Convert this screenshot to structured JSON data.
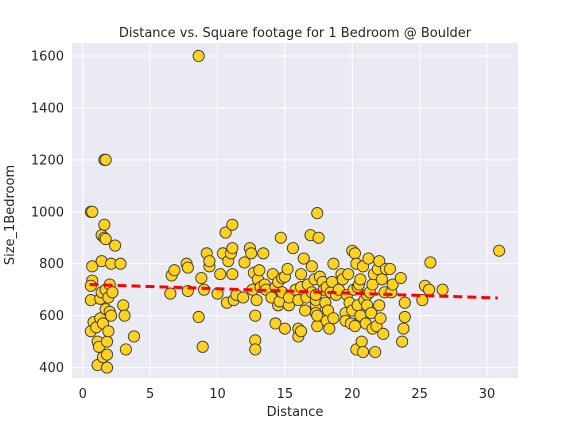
{
  "chart_data": {
    "type": "scatter",
    "title": "Distance vs. Square footage for 1 Bedroom @ Boulder",
    "xlabel": "Distance",
    "ylabel": "Size_1Bedroom",
    "xlim": [
      -0.8,
      32.3
    ],
    "ylim": [
      360,
      1650
    ],
    "xticks": [
      0,
      5,
      10,
      15,
      20,
      25,
      30
    ],
    "yticks": [
      400,
      600,
      800,
      1000,
      1200,
      1400,
      1600
    ],
    "grid": true,
    "legend": "none",
    "colors": {
      "background": "#eaeaf2",
      "grid": "#ffffff",
      "point_fill": "#ffd21e",
      "point_edge": "#3a3a3a",
      "trend": "#ff0000"
    },
    "trend_line": {
      "style": "dashed",
      "x": [
        0.5,
        30.8
      ],
      "y": [
        720,
        668
      ]
    },
    "points": [
      [
        0.6,
        1000
      ],
      [
        0.7,
        1000
      ],
      [
        0.7,
        790
      ],
      [
        0.7,
        735
      ],
      [
        0.6,
        715
      ],
      [
        0.6,
        660
      ],
      [
        0.8,
        575
      ],
      [
        0.6,
        540
      ],
      [
        1.0,
        555
      ],
      [
        1.1,
        500
      ],
      [
        1.1,
        410
      ],
      [
        1.2,
        480
      ],
      [
        1.3,
        665
      ],
      [
        1.3,
        590
      ],
      [
        1.4,
        810
      ],
      [
        1.4,
        690
      ],
      [
        1.5,
        570
      ],
      [
        1.4,
        910
      ],
      [
        1.5,
        440
      ],
      [
        1.6,
        950
      ],
      [
        1.6,
        900
      ],
      [
        1.6,
        1200
      ],
      [
        1.7,
        1200
      ],
      [
        1.7,
        895
      ],
      [
        1.7,
        700
      ],
      [
        1.7,
        625
      ],
      [
        1.8,
        450
      ],
      [
        1.8,
        400
      ],
      [
        1.8,
        500
      ],
      [
        1.9,
        670
      ],
      [
        1.9,
        540
      ],
      [
        2.0,
        615
      ],
      [
        2.0,
        720
      ],
      [
        2.1,
        600
      ],
      [
        2.1,
        800
      ],
      [
        2.2,
        690
      ],
      [
        2.4,
        870
      ],
      [
        2.8,
        800
      ],
      [
        3.0,
        640
      ],
      [
        3.1,
        600
      ],
      [
        3.2,
        470
      ],
      [
        3.8,
        520
      ],
      [
        6.5,
        685
      ],
      [
        6.6,
        755
      ],
      [
        6.8,
        775
      ],
      [
        7.7,
        800
      ],
      [
        7.8,
        785
      ],
      [
        7.8,
        695
      ],
      [
        8.6,
        1600
      ],
      [
        8.6,
        595
      ],
      [
        8.8,
        745
      ],
      [
        8.9,
        480
      ],
      [
        9.0,
        700
      ],
      [
        9.2,
        840
      ],
      [
        9.4,
        790
      ],
      [
        9.4,
        810
      ],
      [
        10.0,
        685
      ],
      [
        10.2,
        760
      ],
      [
        10.4,
        840
      ],
      [
        10.6,
        920
      ],
      [
        10.7,
        650
      ],
      [
        10.8,
        810
      ],
      [
        11.0,
        840
      ],
      [
        11.1,
        860
      ],
      [
        11.1,
        950
      ],
      [
        11.1,
        760
      ],
      [
        11.2,
        660
      ],
      [
        11.4,
        680
      ],
      [
        11.9,
        670
      ],
      [
        12.0,
        805
      ],
      [
        12.4,
        860
      ],
      [
        12.5,
        840
      ],
      [
        12.6,
        700
      ],
      [
        12.7,
        765
      ],
      [
        12.8,
        505
      ],
      [
        12.8,
        470
      ],
      [
        12.8,
        600
      ],
      [
        12.9,
        660
      ],
      [
        13.0,
        740
      ],
      [
        13.1,
        775
      ],
      [
        13.2,
        710
      ],
      [
        13.4,
        840
      ],
      [
        13.5,
        720
      ],
      [
        13.6,
        700
      ],
      [
        14.0,
        670
      ],
      [
        14.1,
        760
      ],
      [
        14.3,
        570
      ],
      [
        14.3,
        710
      ],
      [
        14.5,
        730
      ],
      [
        14.5,
        640
      ],
      [
        14.6,
        655
      ],
      [
        14.7,
        900
      ],
      [
        14.8,
        690
      ],
      [
        14.8,
        745
      ],
      [
        15.0,
        750
      ],
      [
        15.0,
        550
      ],
      [
        15.2,
        780
      ],
      [
        15.3,
        640
      ],
      [
        15.3,
        670
      ],
      [
        15.6,
        860
      ],
      [
        15.8,
        700
      ],
      [
        16.0,
        520
      ],
      [
        16.0,
        660
      ],
      [
        16.0,
        550
      ],
      [
        16.2,
        540
      ],
      [
        16.2,
        710
      ],
      [
        16.2,
        760
      ],
      [
        16.4,
        820
      ],
      [
        16.5,
        620
      ],
      [
        16.6,
        670
      ],
      [
        16.7,
        720
      ],
      [
        16.9,
        910
      ],
      [
        17.0,
        790
      ],
      [
        17.0,
        690
      ],
      [
        17.2,
        740
      ],
      [
        17.3,
        640
      ],
      [
        17.3,
        660
      ],
      [
        17.3,
        610
      ],
      [
        17.3,
        680
      ],
      [
        17.4,
        560
      ],
      [
        17.4,
        995
      ],
      [
        17.4,
        600
      ],
      [
        17.5,
        900
      ],
      [
        17.6,
        750
      ],
      [
        17.8,
        730
      ],
      [
        17.9,
        700
      ],
      [
        18.0,
        650
      ],
      [
        18.1,
        580
      ],
      [
        18.1,
        710
      ],
      [
        18.2,
        620
      ],
      [
        18.3,
        550
      ],
      [
        18.4,
        690
      ],
      [
        18.5,
        730
      ],
      [
        18.6,
        590
      ],
      [
        18.6,
        800
      ],
      [
        18.8,
        680
      ],
      [
        19.0,
        700
      ],
      [
        19.2,
        760
      ],
      [
        19.3,
        740
      ],
      [
        19.5,
        610
      ],
      [
        19.5,
        580
      ],
      [
        19.6,
        680
      ],
      [
        19.7,
        760
      ],
      [
        19.8,
        650
      ],
      [
        19.9,
        570
      ],
      [
        20.0,
        620
      ],
      [
        20.0,
        850
      ],
      [
        20.1,
        700
      ],
      [
        20.2,
        560
      ],
      [
        20.2,
        840
      ],
      [
        20.3,
        470
      ],
      [
        20.3,
        800
      ],
      [
        20.4,
        710
      ],
      [
        20.4,
        640
      ],
      [
        20.5,
        720
      ],
      [
        20.6,
        600
      ],
      [
        20.6,
        740
      ],
      [
        20.7,
        500
      ],
      [
        20.8,
        790
      ],
      [
        20.8,
        460
      ],
      [
        20.9,
        660
      ],
      [
        21.0,
        570
      ],
      [
        21.1,
        680
      ],
      [
        21.1,
        640
      ],
      [
        21.2,
        820
      ],
      [
        21.3,
        690
      ],
      [
        21.4,
        610
      ],
      [
        21.5,
        550
      ],
      [
        21.5,
        720
      ],
      [
        21.6,
        760
      ],
      [
        21.7,
        460
      ],
      [
        21.8,
        560
      ],
      [
        21.9,
        780
      ],
      [
        22.0,
        640
      ],
      [
        22.0,
        810
      ],
      [
        22.1,
        590
      ],
      [
        22.2,
        740
      ],
      [
        22.3,
        530
      ],
      [
        22.4,
        690
      ],
      [
        22.5,
        780
      ],
      [
        22.8,
        780
      ],
      [
        22.9,
        690
      ],
      [
        23.0,
        720
      ],
      [
        23.6,
        745
      ],
      [
        23.7,
        500
      ],
      [
        23.8,
        550
      ],
      [
        23.9,
        595
      ],
      [
        23.9,
        650
      ],
      [
        25.2,
        660
      ],
      [
        25.4,
        715
      ],
      [
        25.7,
        700
      ],
      [
        25.8,
        805
      ],
      [
        26.7,
        700
      ],
      [
        30.9,
        850
      ]
    ]
  }
}
